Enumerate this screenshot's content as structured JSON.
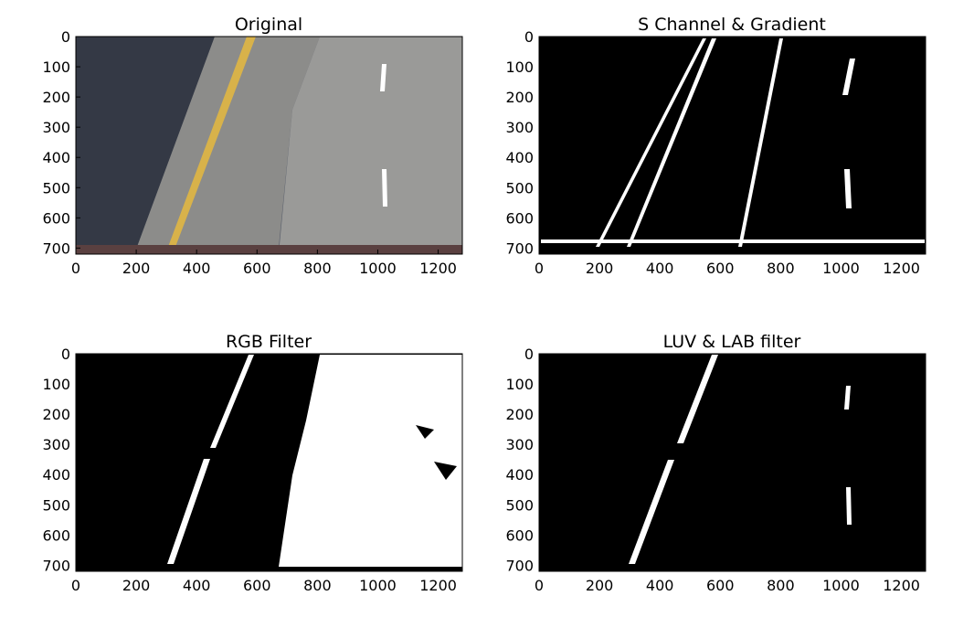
{
  "panels": [
    {
      "title": "Original",
      "kind": "photo",
      "x_ticks": [
        "0",
        "200",
        "400",
        "600",
        "800",
        "1000",
        "1200"
      ],
      "y_ticks": [
        "0",
        "100",
        "200",
        "300",
        "400",
        "500",
        "600",
        "700"
      ],
      "xlim": [
        0,
        1280
      ],
      "ylim": [
        720,
        0
      ]
    },
    {
      "title": "S Channel & Gradient",
      "kind": "binary",
      "x_ticks": [
        "0",
        "200",
        "400",
        "600",
        "800",
        "1000",
        "1200"
      ],
      "y_ticks": [
        "0",
        "100",
        "200",
        "300",
        "400",
        "500",
        "600",
        "700"
      ],
      "xlim": [
        0,
        1280
      ],
      "ylim": [
        720,
        0
      ]
    },
    {
      "title": "RGB Filter",
      "kind": "binary",
      "x_ticks": [
        "0",
        "200",
        "400",
        "600",
        "800",
        "1000",
        "1200"
      ],
      "y_ticks": [
        "0",
        "100",
        "200",
        "300",
        "400",
        "500",
        "600",
        "700"
      ],
      "xlim": [
        0,
        1280
      ],
      "ylim": [
        720,
        0
      ]
    },
    {
      "title": "LUV & LAB filter",
      "kind": "binary",
      "x_ticks": [
        "0",
        "200",
        "400",
        "600",
        "800",
        "1000",
        "1200"
      ],
      "y_ticks": [
        "0",
        "100",
        "200",
        "300",
        "400",
        "500",
        "600",
        "700"
      ],
      "xlim": [
        0,
        1280
      ],
      "ylim": [
        720,
        0
      ]
    }
  ],
  "colors": {
    "road": "#8f8f8f",
    "shoulder": "#3a3f4a",
    "yellow_line": "#d8b24a",
    "white_line": "#ffffff",
    "mask_bg": "#000000",
    "mask_fg": "#ffffff"
  }
}
